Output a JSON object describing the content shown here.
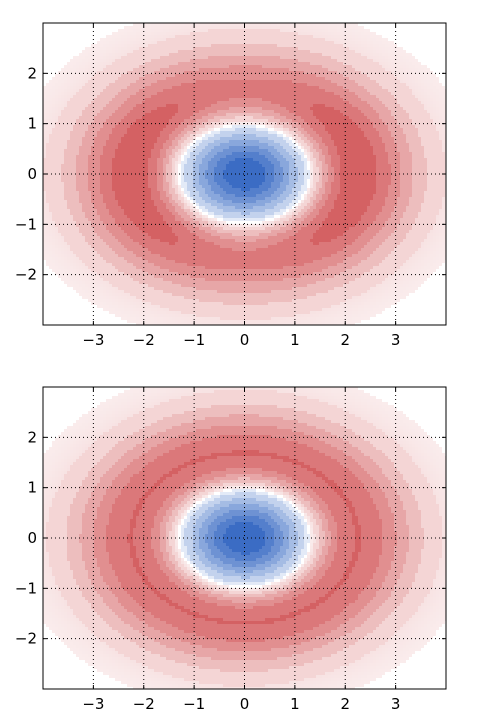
{
  "chart_data": [
    {
      "type": "heatmap",
      "title": "",
      "xlabel": "",
      "ylabel": "",
      "xlim": [
        -4,
        4
      ],
      "ylim": [
        -3,
        3
      ],
      "xticks": [
        -3,
        -2,
        -1,
        0,
        1,
        2,
        3
      ],
      "yticks": [
        -2,
        -1,
        0,
        1,
        2
      ],
      "xtick_labels": [
        "−3",
        "−2",
        "−1",
        "0",
        "1",
        "2",
        "3"
      ],
      "ytick_labels": [
        "−2",
        "−1",
        "0",
        "1",
        "2"
      ],
      "grid": true,
      "colormap": "coolwarm",
      "color_low": "#3b6cc4",
      "color_mid": "#ffffff",
      "color_high": "#cc4244",
      "field": {
        "form": "-(1 - (r/c)^2) * exp(-(r/c)^2 / 2), r^2 = x^2 + y^2/q^2",
        "c": 1.3,
        "q": 0.75,
        "anisotropy": 0.12,
        "center_value": -1.0,
        "ring_value": 0.45
      },
      "levels": [
        -1.0,
        -0.85,
        -0.7,
        -0.55,
        -0.4,
        -0.25,
        -0.1,
        0.0,
        0.07,
        0.13,
        0.19,
        0.25,
        0.31,
        0.37,
        0.42
      ]
    },
    {
      "type": "heatmap",
      "title": "",
      "xlabel": "",
      "ylabel": "",
      "xlim": [
        -4,
        4
      ],
      "ylim": [
        -3,
        3
      ],
      "xticks": [
        -3,
        -2,
        -1,
        0,
        1,
        2,
        3
      ],
      "yticks": [
        -2,
        -1,
        0,
        1,
        2
      ],
      "xtick_labels": [
        "−3",
        "−2",
        "−1",
        "0",
        "1",
        "2",
        "3"
      ],
      "ytick_labels": [
        "−2",
        "−1",
        "0",
        "1",
        "2"
      ],
      "grid": true,
      "colormap": "coolwarm",
      "color_low": "#3b6cc4",
      "color_mid": "#ffffff",
      "color_high": "#cc4244",
      "field": {
        "form": "-(1 - (r/c)^2) * exp(-(r/c)^2 / 2), r^2 = x^2 + y^2/q^2",
        "c": 1.3,
        "q": 0.75,
        "anisotropy": 0.0,
        "center_value": -1.0,
        "ring_value": 0.45
      },
      "levels": [
        -1.0,
        -0.85,
        -0.7,
        -0.55,
        -0.4,
        -0.25,
        -0.1,
        0.0,
        0.07,
        0.13,
        0.19,
        0.25,
        0.31,
        0.37,
        0.42
      ]
    }
  ]
}
